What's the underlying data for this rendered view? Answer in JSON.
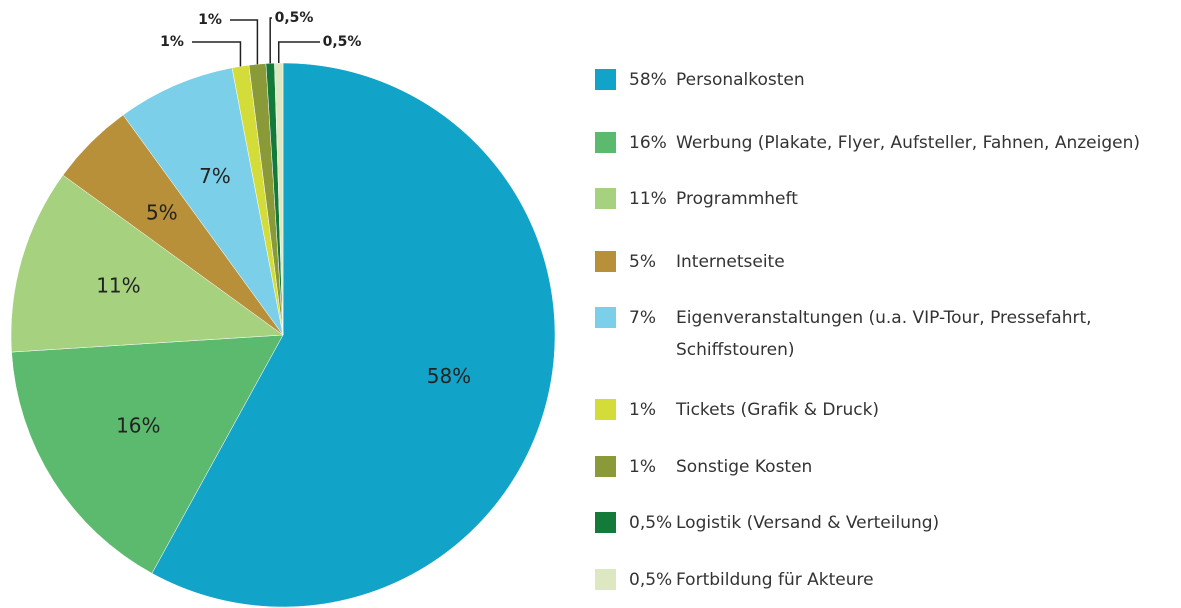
{
  "chart_data": {
    "type": "pie",
    "categories": [
      "Personalkosten",
      "Werbung (Plakate, Flyer, Aufsteller, Fahnen, Anzeigen)",
      "Programmheft",
      "Internetseite",
      "Eigenveranstaltungen (u.a. VIP-Tour, Pressefahrt, Schiffstouren)",
      "Tickets (Grafik & Druck)",
      "Sonstige Kosten",
      "Logistik (Versand & Verteilung)",
      "Fortbildung für Akteure"
    ],
    "values": [
      58,
      16,
      11,
      5,
      7,
      1,
      1,
      0.5,
      0.5
    ],
    "value_labels": [
      "58%",
      "16%",
      "11%",
      "5%",
      "7%",
      "1%",
      "1%",
      "0,5%",
      "0,5%"
    ],
    "colors": [
      "#12a3c9",
      "#5cba6e",
      "#a6d17f",
      "#b8903a",
      "#7ccfe8",
      "#d4dc3a",
      "#8a9a38",
      "#137a3a",
      "#dde8c2"
    ],
    "legend": "right"
  }
}
